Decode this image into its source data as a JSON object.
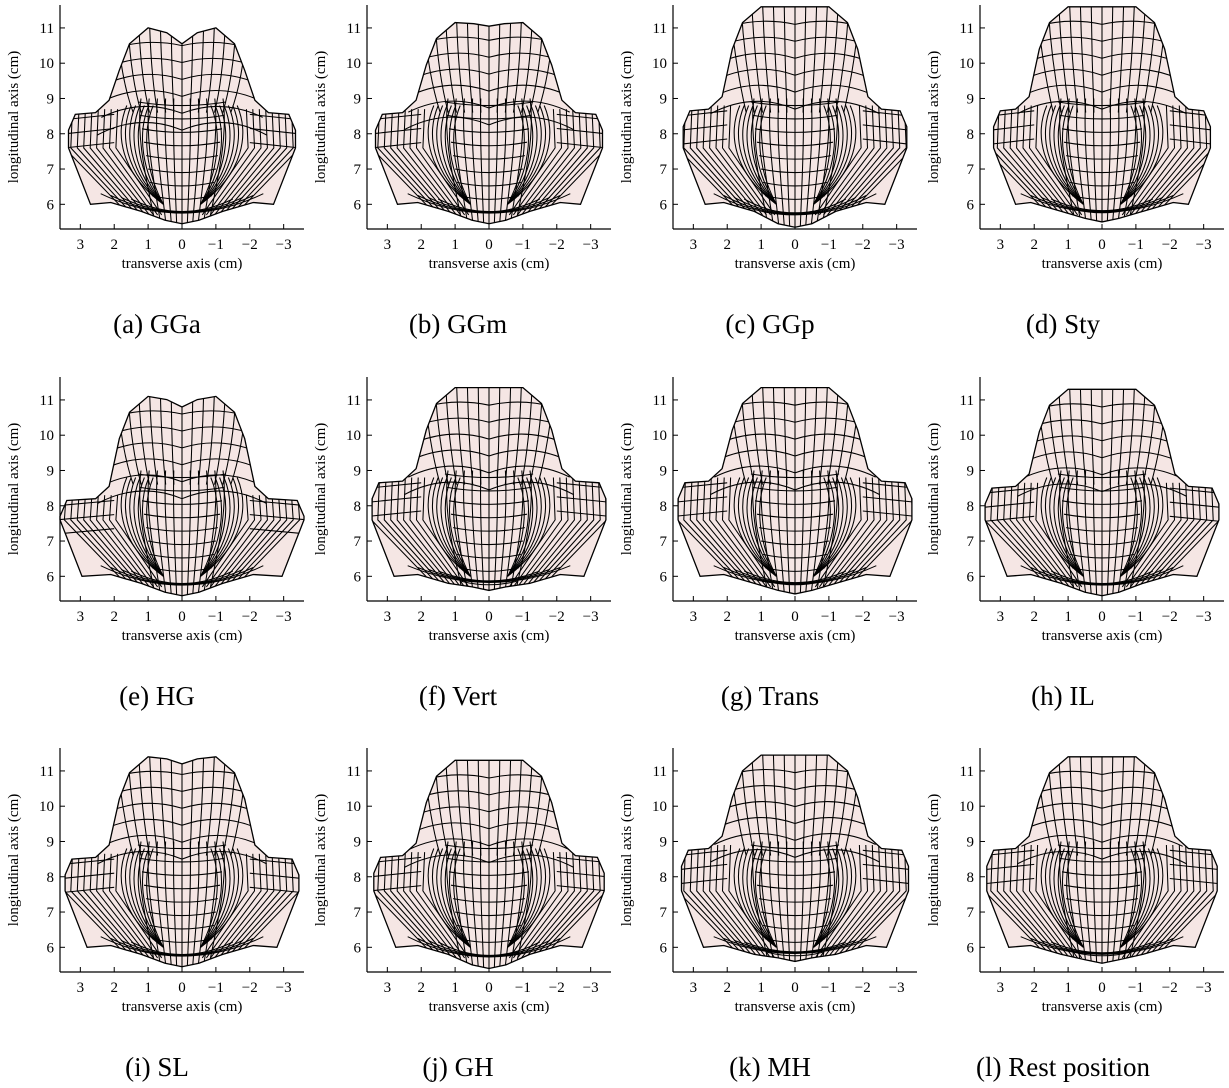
{
  "figure": {
    "panels": [
      {
        "caption": "(a) GGa"
      },
      {
        "caption": "(b) GGm"
      },
      {
        "caption": "(c) GGp"
      },
      {
        "caption": "(d) Sty"
      },
      {
        "caption": "(e) HG"
      },
      {
        "caption": "(f) Vert"
      },
      {
        "caption": "(g) Trans"
      },
      {
        "caption": "(h) IL"
      },
      {
        "caption": "(i) SL"
      },
      {
        "caption": "(j) GH"
      },
      {
        "caption": "(k) MH"
      },
      {
        "caption": "(l) Rest position"
      }
    ],
    "x_axis": {
      "label": "transverse axis (cm)",
      "ticks": [
        "3",
        "2",
        "1",
        "0",
        "−1",
        "−2",
        "−3"
      ]
    },
    "y_axis": {
      "label": "longitudinal axis (cm)",
      "ticks": [
        "6",
        "7",
        "8",
        "9",
        "10",
        "11"
      ]
    },
    "colors": {
      "mesh_fill": "#f5e6e4",
      "mesh_line": "#000000"
    }
  }
}
